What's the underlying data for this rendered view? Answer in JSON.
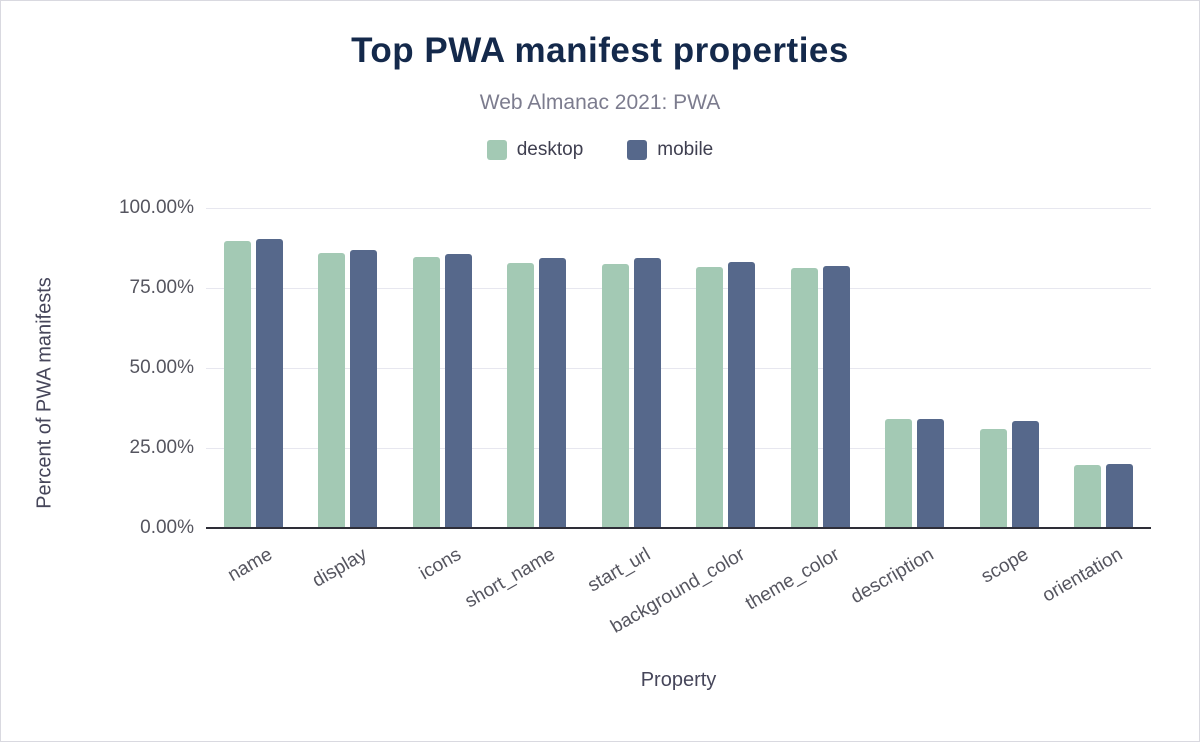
{
  "chart_data": {
    "type": "bar",
    "title": "Top PWA manifest properties",
    "subtitle": "Web Almanac 2021: PWA",
    "xlabel": "Property",
    "ylabel": "Percent of PWA manifests",
    "ylim": [
      0,
      100
    ],
    "yticks": [
      "0.00%",
      "25.00%",
      "50.00%",
      "75.00%",
      "100.00%"
    ],
    "grid": true,
    "legend_position": "top",
    "categories": [
      "name",
      "display",
      "icons",
      "short_name",
      "start_url",
      "background_color",
      "theme_color",
      "description",
      "scope",
      "orientation"
    ],
    "series": [
      {
        "name": "desktop",
        "color": "#a3c9b4",
        "values": [
          89.6,
          85.9,
          84.7,
          82.7,
          82.6,
          81.5,
          81.1,
          34.1,
          30.8,
          19.8
        ]
      },
      {
        "name": "mobile",
        "color": "#56688b",
        "values": [
          90.3,
          86.9,
          85.7,
          84.3,
          84.3,
          83.2,
          82.0,
          34.0,
          33.3,
          19.9
        ]
      }
    ]
  },
  "colors": {
    "title": "#14294b",
    "subtitle": "#7c7c8e",
    "axis_text": "#55555f",
    "gridline": "#e7e7ef",
    "axis_line": "#2e2e38",
    "background": "#ffffff"
  }
}
